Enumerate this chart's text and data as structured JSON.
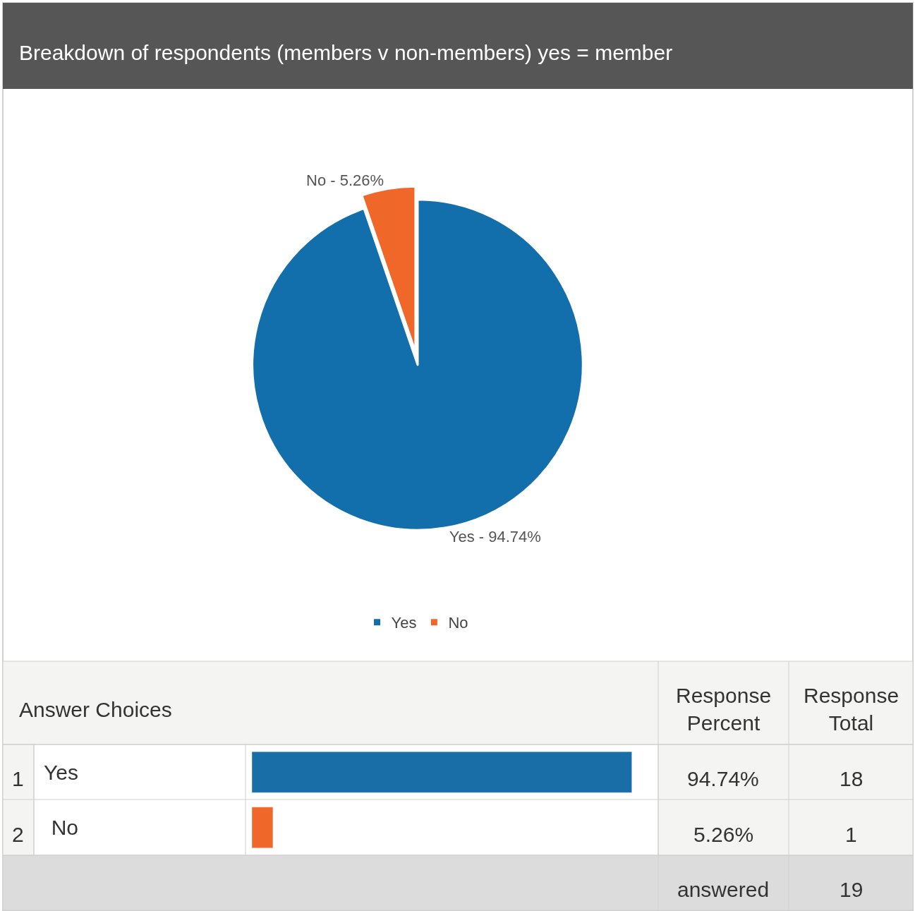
{
  "chart_data": [
    {
      "type": "pie",
      "title": "Breakdown of respondents (members v non-members) yes = member",
      "categories": [
        "Yes",
        "No"
      ],
      "values": [
        94.74,
        5.26
      ],
      "colors": [
        "#136fab",
        "#f0672a"
      ],
      "annotations": [
        {
          "text": "Yes - 94.74%",
          "x": "Yes"
        },
        {
          "text": "No - 5.26%",
          "x": "No"
        }
      ],
      "legend": "bottom"
    },
    {
      "type": "bar",
      "orientation": "horizontal",
      "categories": [
        "Yes",
        "No"
      ],
      "values": [
        94.74,
        5.26
      ],
      "colors": [
        "#1a6ea8",
        "#f0672a"
      ],
      "value_labels": [
        "94.74%",
        "5.26%"
      ],
      "tick_labels": "y",
      "annotations": [
        "Answer Choices",
        "Response Percent",
        "Response Total",
        "1",
        "2",
        "18",
        "1",
        "answered",
        "19"
      ]
    }
  ]
}
